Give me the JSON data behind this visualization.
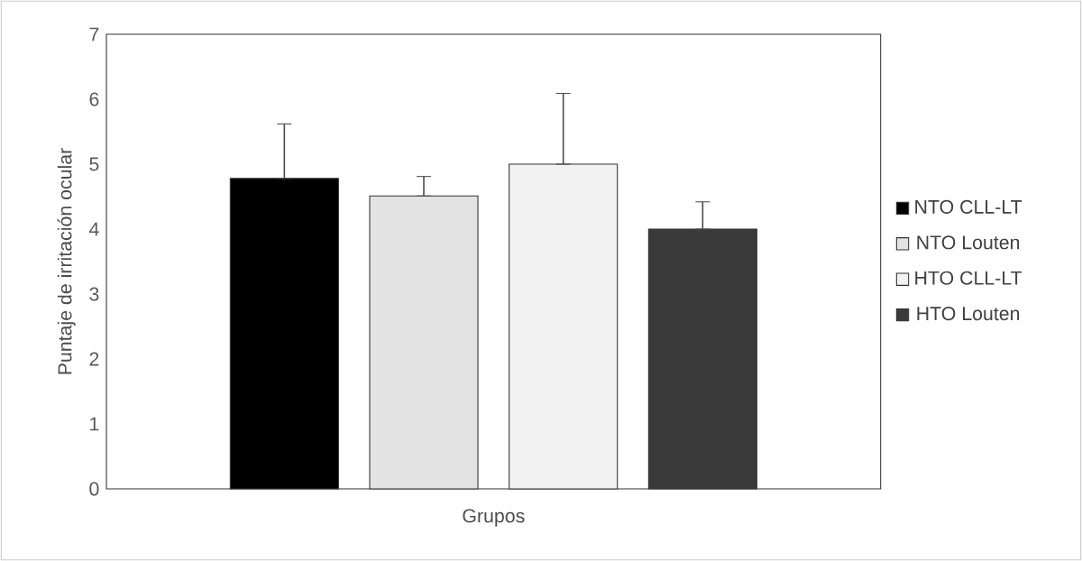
{
  "chart_data": {
    "type": "bar",
    "xlabel": "Grupos",
    "ylabel": "Puntaje de irritación ocular",
    "categories": [
      null
    ],
    "series": [
      {
        "name": "NTO CLL-LT",
        "color": "#000000",
        "values": [
          4.78
        ],
        "errors": [
          [
            4.78,
            5.62
          ]
        ]
      },
      {
        "name": "NTO Louten",
        "color": "#e3e3e3",
        "values": [
          4.51
        ],
        "errors": [
          [
            4.51,
            4.81
          ]
        ]
      },
      {
        "name": "HTO CLL-LT",
        "color": "#f2f2f2",
        "values": [
          5.0
        ],
        "errors": [
          [
            5.0,
            6.09
          ]
        ]
      },
      {
        "name": "HTO Louten",
        "color": "#3a3a3a",
        "values": [
          4.0
        ],
        "errors": [
          [
            4.0,
            4.42
          ]
        ]
      }
    ],
    "ylim": [
      0,
      7
    ],
    "yticks": [
      0,
      1,
      2,
      3,
      4,
      5,
      6,
      7
    ],
    "legend": "right"
  }
}
